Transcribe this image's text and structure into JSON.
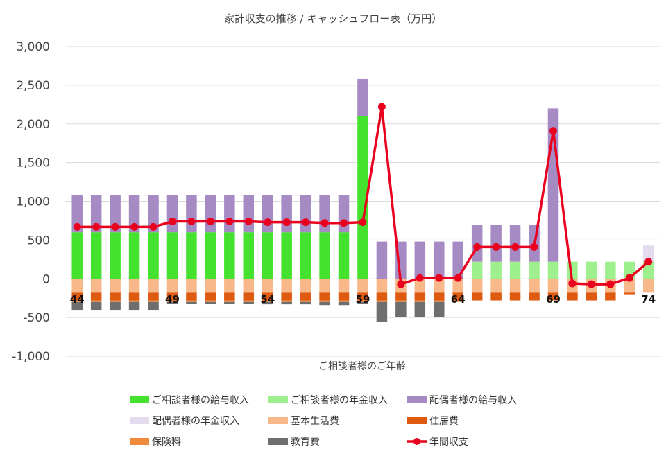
{
  "chart_data": {
    "type": "bar",
    "title": "家計収支の推移 / キャッシュフロー表（万円）",
    "xlabel": "ご相談者様のご年齢",
    "ylabel": "",
    "ylim": [
      -1000,
      3000
    ],
    "y_ticks": [
      3000,
      2500,
      2000,
      1500,
      1000,
      500,
      0,
      -500,
      -1000
    ],
    "y_tick_labels": [
      "3,000",
      "2,500",
      "2,000",
      "1,500",
      "1,000",
      "500",
      "0",
      "-500",
      "-1,000"
    ],
    "negative_tick_color": "#e8001e",
    "categories": [
      44,
      45,
      46,
      47,
      48,
      49,
      50,
      51,
      52,
      53,
      54,
      55,
      56,
      57,
      58,
      59,
      60,
      61,
      62,
      63,
      64,
      65,
      66,
      67,
      68,
      69,
      70,
      71,
      72,
      73,
      74
    ],
    "age_labels": [
      {
        "index": 0,
        "text": "44"
      },
      {
        "index": 5,
        "text": "49"
      },
      {
        "index": 10,
        "text": "54"
      },
      {
        "index": 15,
        "text": "59"
      },
      {
        "index": 20,
        "text": "64"
      },
      {
        "index": 25,
        "text": "69"
      },
      {
        "index": 30,
        "text": "74"
      }
    ],
    "series": [
      {
        "name": "ご相談者様の給与収入",
        "kind": "bar",
        "color": "#44e22e",
        "values": [
          600,
          600,
          600,
          600,
          600,
          600,
          600,
          600,
          600,
          600,
          600,
          600,
          600,
          600,
          600,
          2100,
          0,
          0,
          0,
          0,
          0,
          0,
          0,
          0,
          0,
          0,
          0,
          0,
          0,
          0,
          0
        ]
      },
      {
        "name": "ご相談者様の年金収入",
        "kind": "bar",
        "color": "#9ef08e",
        "values": [
          0,
          0,
          0,
          0,
          0,
          0,
          0,
          0,
          0,
          0,
          0,
          0,
          0,
          0,
          0,
          0,
          0,
          0,
          0,
          0,
          0,
          220,
          220,
          220,
          220,
          220,
          220,
          220,
          220,
          220,
          220
        ]
      },
      {
        "name": "配偶者様の給与収入",
        "kind": "bar",
        "color": "#a68ac4",
        "values": [
          480,
          480,
          480,
          480,
          480,
          480,
          480,
          480,
          480,
          480,
          480,
          480,
          480,
          480,
          480,
          480,
          480,
          480,
          480,
          480,
          480,
          480,
          480,
          480,
          480,
          1980,
          0,
          0,
          0,
          0,
          0
        ]
      },
      {
        "name": "配偶者様の年金収入",
        "kind": "bar",
        "color": "#e4dbee",
        "values": [
          0,
          0,
          0,
          0,
          0,
          0,
          0,
          0,
          0,
          0,
          0,
          0,
          0,
          0,
          0,
          0,
          0,
          0,
          0,
          0,
          0,
          0,
          0,
          0,
          0,
          0,
          0,
          0,
          0,
          0,
          210
        ]
      },
      {
        "name": "基本生活費",
        "kind": "bar",
        "color": "#f8b88a",
        "values": [
          -180,
          -180,
          -180,
          -180,
          -180,
          -180,
          -180,
          -180,
          -180,
          -180,
          -180,
          -180,
          -180,
          -180,
          -180,
          -180,
          -180,
          -180,
          -180,
          -180,
          -180,
          -180,
          -180,
          -180,
          -180,
          -180,
          -180,
          -180,
          -180,
          -180,
          -180
        ]
      },
      {
        "name": "住居費",
        "kind": "bar",
        "color": "#de5a10",
        "values": [
          -100,
          -100,
          -100,
          -100,
          -100,
          -100,
          -100,
          -100,
          -100,
          -100,
          -100,
          -100,
          -100,
          -100,
          -100,
          -100,
          -100,
          -100,
          -100,
          -100,
          -100,
          -100,
          -100,
          -100,
          -100,
          -100,
          -100,
          -100,
          -100,
          -20,
          0
        ]
      },
      {
        "name": "保険料",
        "kind": "bar",
        "color": "#f08a3c",
        "values": [
          -20,
          -20,
          -20,
          -20,
          -20,
          -20,
          -20,
          -20,
          -20,
          -20,
          -20,
          -20,
          -20,
          -20,
          -20,
          -20,
          -20,
          -20,
          -20,
          -20,
          -20,
          0,
          0,
          0,
          0,
          0,
          0,
          0,
          0,
          0,
          0
        ]
      },
      {
        "name": "教育費",
        "kind": "bar",
        "color": "#6e6e6e",
        "values": [
          -110,
          -110,
          -110,
          -110,
          -110,
          -20,
          -20,
          -20,
          -20,
          -20,
          -30,
          -30,
          -30,
          -40,
          -40,
          -20,
          -260,
          -190,
          -190,
          -190,
          0,
          0,
          0,
          0,
          0,
          0,
          0,
          0,
          0,
          0,
          0
        ]
      },
      {
        "name": "年間収支",
        "kind": "line",
        "color": "#e8001e",
        "values": [
          670,
          670,
          670,
          670,
          670,
          740,
          740,
          740,
          740,
          740,
          730,
          730,
          730,
          720,
          720,
          730,
          2220,
          -70,
          10,
          10,
          10,
          410,
          410,
          410,
          410,
          1910,
          -60,
          -70,
          -70,
          10,
          220
        ]
      }
    ],
    "legend": {
      "placement": "bottom",
      "items": [
        {
          "label": "ご相談者様の給与収入",
          "color": "#44e22e",
          "kind": "bar"
        },
        {
          "label": "ご相談者様の年金収入",
          "color": "#9ef08e",
          "kind": "bar"
        },
        {
          "label": "配偶者様の給与収入",
          "color": "#a68ac4",
          "kind": "bar"
        },
        {
          "label": "配偶者様の年金収入",
          "color": "#e4dbee",
          "kind": "bar"
        },
        {
          "label": "基本生活費",
          "color": "#f8b88a",
          "kind": "bar"
        },
        {
          "label": "住居費",
          "color": "#de5a10",
          "kind": "bar"
        },
        {
          "label": "保険料",
          "color": "#f08a3c",
          "kind": "bar"
        },
        {
          "label": "教育費",
          "color": "#6e6e6e",
          "kind": "bar"
        },
        {
          "label": "年間収支",
          "color": "#e8001e",
          "kind": "line"
        }
      ]
    },
    "grid": true
  }
}
